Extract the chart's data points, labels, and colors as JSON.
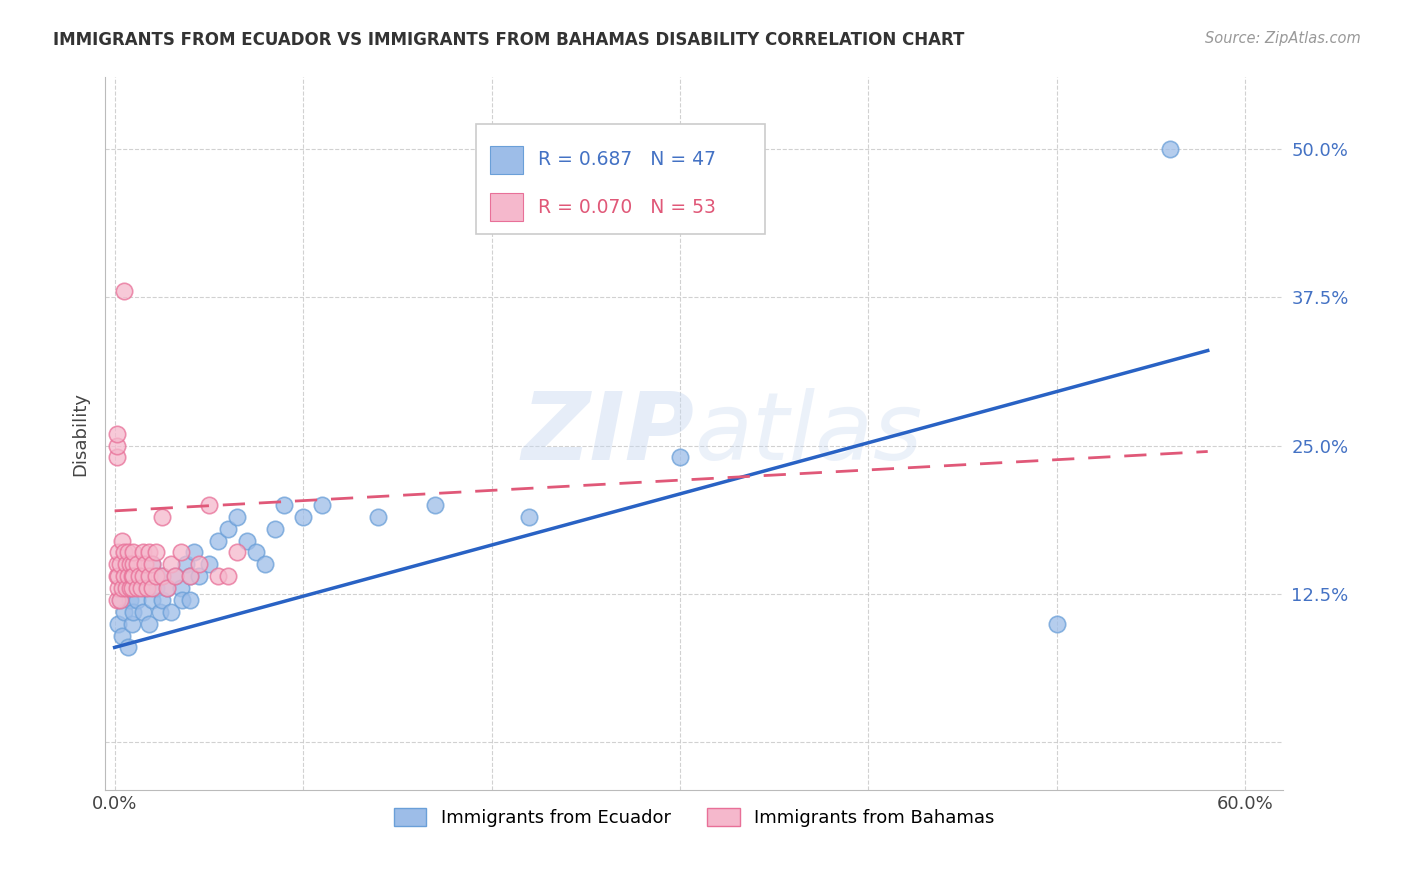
{
  "title": "IMMIGRANTS FROM ECUADOR VS IMMIGRANTS FROM BAHAMAS DISABILITY CORRELATION CHART",
  "source": "Source: ZipAtlas.com",
  "ylabel": "Disability",
  "xlim": [
    -0.005,
    0.62
  ],
  "ylim": [
    -0.04,
    0.56
  ],
  "xtick_positions": [
    0.0,
    0.1,
    0.2,
    0.3,
    0.4,
    0.5,
    0.6
  ],
  "xticklabels": [
    "0.0%",
    "",
    "",
    "",
    "",
    "",
    "60.0%"
  ],
  "ytick_positions": [
    0.0,
    0.125,
    0.25,
    0.375,
    0.5
  ],
  "yticklabels_right": [
    "",
    "12.5%",
    "25.0%",
    "37.5%",
    "50.0%"
  ],
  "legend_text1": "R = 0.687   N = 47",
  "legend_text2": "R = 0.070   N = 53",
  "watermark": "ZIPatlas",
  "ecuador_color": "#9dbde8",
  "ecuador_edge": "#6a9fd8",
  "bahamas_color": "#f5b8cc",
  "bahamas_edge": "#e87098",
  "ecuador_line_color": "#2962c4",
  "bahamas_line_color": "#e05878",
  "grid_color": "#cccccc",
  "ytick_color": "#4472c4",
  "ecuador_x": [
    0.002,
    0.003,
    0.004,
    0.005,
    0.006,
    0.007,
    0.008,
    0.009,
    0.01,
    0.012,
    0.013,
    0.015,
    0.016,
    0.018,
    0.02,
    0.02,
    0.022,
    0.024,
    0.025,
    0.025,
    0.028,
    0.03,
    0.032,
    0.035,
    0.036,
    0.038,
    0.04,
    0.04,
    0.042,
    0.045,
    0.05,
    0.055,
    0.06,
    0.065,
    0.07,
    0.075,
    0.08,
    0.085,
    0.09,
    0.1,
    0.11,
    0.14,
    0.17,
    0.22,
    0.3,
    0.5,
    0.56
  ],
  "ecuador_y": [
    0.1,
    0.12,
    0.09,
    0.11,
    0.13,
    0.08,
    0.12,
    0.1,
    0.11,
    0.12,
    0.14,
    0.11,
    0.13,
    0.1,
    0.12,
    0.15,
    0.13,
    0.11,
    0.14,
    0.12,
    0.13,
    0.11,
    0.14,
    0.13,
    0.12,
    0.15,
    0.14,
    0.12,
    0.16,
    0.14,
    0.15,
    0.17,
    0.18,
    0.19,
    0.17,
    0.16,
    0.15,
    0.18,
    0.2,
    0.19,
    0.2,
    0.19,
    0.2,
    0.19,
    0.24,
    0.1,
    0.5
  ],
  "bahamas_x": [
    0.001,
    0.001,
    0.001,
    0.002,
    0.002,
    0.002,
    0.003,
    0.003,
    0.004,
    0.004,
    0.005,
    0.005,
    0.005,
    0.006,
    0.006,
    0.007,
    0.007,
    0.008,
    0.008,
    0.009,
    0.009,
    0.01,
    0.01,
    0.01,
    0.012,
    0.012,
    0.013,
    0.014,
    0.015,
    0.015,
    0.016,
    0.017,
    0.018,
    0.018,
    0.02,
    0.02,
    0.022,
    0.022,
    0.025,
    0.025,
    0.028,
    0.03,
    0.032,
    0.035,
    0.04,
    0.045,
    0.05,
    0.055,
    0.06,
    0.065,
    0.001,
    0.001,
    0.001
  ],
  "bahamas_y": [
    0.12,
    0.14,
    0.15,
    0.13,
    0.16,
    0.14,
    0.12,
    0.15,
    0.13,
    0.17,
    0.14,
    0.16,
    0.38,
    0.13,
    0.15,
    0.14,
    0.16,
    0.13,
    0.15,
    0.14,
    0.13,
    0.15,
    0.14,
    0.16,
    0.13,
    0.15,
    0.14,
    0.13,
    0.16,
    0.14,
    0.15,
    0.13,
    0.14,
    0.16,
    0.15,
    0.13,
    0.14,
    0.16,
    0.19,
    0.14,
    0.13,
    0.15,
    0.14,
    0.16,
    0.14,
    0.15,
    0.2,
    0.14,
    0.14,
    0.16,
    0.24,
    0.25,
    0.26
  ]
}
